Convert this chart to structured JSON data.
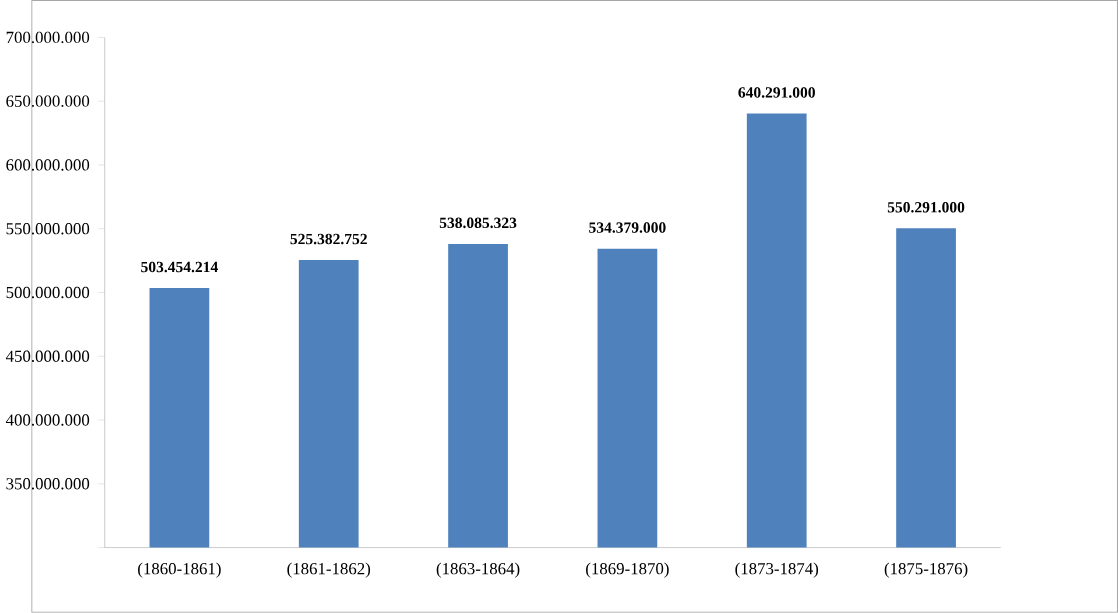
{
  "chart_data": {
    "type": "bar",
    "categories": [
      "(1860-1861)",
      "(1861-1862)",
      "(1863-1864)",
      "(1869-1870)",
      "(1873-1874)",
      "(1875-1876)"
    ],
    "values": [
      503454214,
      525382752,
      538085323,
      534379000,
      640291000,
      550291000
    ],
    "value_labels": [
      "503.454.214",
      "525.382.752",
      "538.085.323",
      "534.379.000",
      "640.291.000",
      "550.291.000"
    ],
    "color": "#4f81bd",
    "ylim": [
      300000000,
      700000000
    ],
    "yticks": [
      {
        "value": 300000000,
        "label": null
      },
      {
        "value": 350000000,
        "label": "350.000.000"
      },
      {
        "value": 400000000,
        "label": "400.000.000"
      },
      {
        "value": 450000000,
        "label": "450.000.000"
      },
      {
        "value": 500000000,
        "label": "500.000.000"
      },
      {
        "value": 550000000,
        "label": "550.000.000"
      },
      {
        "value": 600000000,
        "label": "600.000.000"
      },
      {
        "value": 650000000,
        "label": "650.000.000"
      },
      {
        "value": 700000000,
        "label": "700.000.000"
      }
    ],
    "grid": false
  }
}
